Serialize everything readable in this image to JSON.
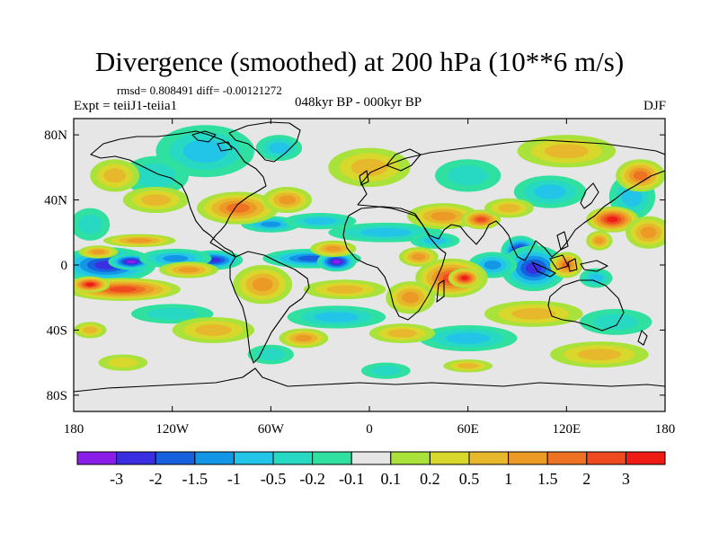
{
  "title": "Divergence (smoothed) at 200 hPa (10**6 m/s)",
  "stats_line": "rmsd= 0.808491 diff= -0.00121272",
  "experiment": "Expt = teiiJ1-teiia1",
  "period": "048kyr BP - 000kyr BP",
  "season": "DJF",
  "chart_data": {
    "type": "heatmap",
    "map": "global-equidistant-cylindrical",
    "lon_range": [
      -180,
      180
    ],
    "lat_range": [
      -90,
      90
    ],
    "x_ticks": [
      {
        "lon": -180,
        "label": "180"
      },
      {
        "lon": -120,
        "label": "120W"
      },
      {
        "lon": -60,
        "label": "60W"
      },
      {
        "lon": 0,
        "label": "0"
      },
      {
        "lon": 60,
        "label": "60E"
      },
      {
        "lon": 120,
        "label": "120E"
      },
      {
        "lon": 180,
        "label": "180"
      }
    ],
    "y_ticks": [
      {
        "lat": 80,
        "label": "80N"
      },
      {
        "lat": 40,
        "label": "40N"
      },
      {
        "lat": 0,
        "label": "0"
      },
      {
        "lat": -40,
        "label": "40S"
      },
      {
        "lat": -80,
        "label": "80S"
      }
    ],
    "colorbar": {
      "colors": [
        "#8a1ee8",
        "#3a2fe0",
        "#1760de",
        "#1496e6",
        "#22c4e8",
        "#27d9c2",
        "#2fe0a0",
        "#e6e6e6",
        "#a8e23a",
        "#d8d82c",
        "#e8b82c",
        "#ec9a26",
        "#ee7224",
        "#f04a20",
        "#ee1c14"
      ],
      "labels": [
        "-3",
        "-2",
        "-1.5",
        "-1",
        "-0.5",
        "-0.2",
        "-0.1",
        "0.1",
        "0.2",
        "0.5",
        "1",
        "1.5",
        "2",
        "3"
      ]
    },
    "field_blobs": [
      {
        "lon": -160,
        "lat": 0,
        "rx": 30,
        "ry": 11,
        "v": -2.3
      },
      {
        "lon": -145,
        "lat": 2,
        "rx": 14,
        "ry": 5,
        "v": -3.2
      },
      {
        "lon": -95,
        "lat": 3,
        "rx": 18,
        "ry": 6,
        "v": -2.2
      },
      {
        "lon": -118,
        "lat": 4,
        "rx": 22,
        "ry": 6,
        "v": -1.1
      },
      {
        "lon": -35,
        "lat": 4,
        "rx": 30,
        "ry": 6,
        "v": -1.6
      },
      {
        "lon": -20,
        "lat": 2,
        "rx": 12,
        "ry": 6,
        "v": -3.2
      },
      {
        "lon": -60,
        "lat": 25,
        "rx": 18,
        "ry": 5,
        "v": -1.1
      },
      {
        "lon": -30,
        "lat": 27,
        "rx": 22,
        "ry": 5,
        "v": -0.8
      },
      {
        "lon": 10,
        "lat": 20,
        "rx": 35,
        "ry": 6,
        "v": -0.7
      },
      {
        "lon": 40,
        "lat": 15,
        "rx": 15,
        "ry": 5,
        "v": -0.9
      },
      {
        "lon": 92,
        "lat": 8,
        "rx": 12,
        "ry": 10,
        "v": -3.1
      },
      {
        "lon": 100,
        "lat": -2,
        "rx": 20,
        "ry": 14,
        "v": -2.1
      },
      {
        "lon": 75,
        "lat": 0,
        "rx": 15,
        "ry": 8,
        "v": -1.3
      },
      {
        "lon": 138,
        "lat": -8,
        "rx": 10,
        "ry": 6,
        "v": -1.0
      },
      {
        "lon": 110,
        "lat": 45,
        "rx": 22,
        "ry": 10,
        "v": -0.8
      },
      {
        "lon": 160,
        "lat": 42,
        "rx": 14,
        "ry": 14,
        "v": -0.6
      },
      {
        "lon": -100,
        "lat": 70,
        "rx": 30,
        "ry": 16,
        "v": -0.7
      },
      {
        "lon": -55,
        "lat": 72,
        "rx": 14,
        "ry": 8,
        "v": -0.9
      },
      {
        "lon": -130,
        "lat": 55,
        "rx": 20,
        "ry": 12,
        "v": -0.5
      },
      {
        "lon": 60,
        "lat": 55,
        "rx": 20,
        "ry": 10,
        "v": -0.5
      },
      {
        "lon": -170,
        "lat": 25,
        "rx": 12,
        "ry": 10,
        "v": -0.5
      },
      {
        "lon": -20,
        "lat": -32,
        "rx": 30,
        "ry": 7,
        "v": -0.8
      },
      {
        "lon": 60,
        "lat": -45,
        "rx": 30,
        "ry": 8,
        "v": -0.8
      },
      {
        "lon": 150,
        "lat": -35,
        "rx": 22,
        "ry": 8,
        "v": -0.5
      },
      {
        "lon": -120,
        "lat": -30,
        "rx": 25,
        "ry": 6,
        "v": -0.4
      },
      {
        "lon": -60,
        "lat": -55,
        "rx": 14,
        "ry": 6,
        "v": -0.5
      },
      {
        "lon": 10,
        "lat": -65,
        "rx": 15,
        "ry": 5,
        "v": -0.3
      },
      {
        "lon": -150,
        "lat": -15,
        "rx": 35,
        "ry": 7,
        "v": 2.4
      },
      {
        "lon": -170,
        "lat": -12,
        "rx": 12,
        "ry": 5,
        "v": 3.2
      },
      {
        "lon": -110,
        "lat": -3,
        "rx": 18,
        "ry": 5,
        "v": 1.3
      },
      {
        "lon": -140,
        "lat": 15,
        "rx": 22,
        "ry": 4,
        "v": 1.0
      },
      {
        "lon": -165,
        "lat": 8,
        "rx": 12,
        "ry": 4,
        "v": 1.0
      },
      {
        "lon": -80,
        "lat": 35,
        "rx": 25,
        "ry": 10,
        "v": 1.6
      },
      {
        "lon": -50,
        "lat": 40,
        "rx": 15,
        "ry": 8,
        "v": 1.2
      },
      {
        "lon": -22,
        "lat": 10,
        "rx": 14,
        "ry": 5,
        "v": 1.4
      },
      {
        "lon": -65,
        "lat": -12,
        "rx": 18,
        "ry": 12,
        "v": 1.0
      },
      {
        "lon": -15,
        "lat": -15,
        "rx": 25,
        "ry": 6,
        "v": 0.8
      },
      {
        "lon": 50,
        "lat": -8,
        "rx": 22,
        "ry": 12,
        "v": 2.0
      },
      {
        "lon": 58,
        "lat": -8,
        "rx": 10,
        "ry": 6,
        "v": 3.2
      },
      {
        "lon": 25,
        "lat": -20,
        "rx": 15,
        "ry": 10,
        "v": 1.3
      },
      {
        "lon": 30,
        "lat": 5,
        "rx": 12,
        "ry": 6,
        "v": 1.0
      },
      {
        "lon": 45,
        "lat": 30,
        "rx": 22,
        "ry": 8,
        "v": 1.2
      },
      {
        "lon": 68,
        "lat": 28,
        "rx": 12,
        "ry": 6,
        "v": 2.5
      },
      {
        "lon": 85,
        "lat": 35,
        "rx": 15,
        "ry": 6,
        "v": 0.8
      },
      {
        "lon": 120,
        "lat": 0,
        "rx": 10,
        "ry": 8,
        "v": 1.5
      },
      {
        "lon": 140,
        "lat": 15,
        "rx": 8,
        "ry": 6,
        "v": 1.3
      },
      {
        "lon": 148,
        "lat": 28,
        "rx": 16,
        "ry": 8,
        "v": 3.0
      },
      {
        "lon": 170,
        "lat": 20,
        "rx": 14,
        "ry": 10,
        "v": 1.3
      },
      {
        "lon": 165,
        "lat": 55,
        "rx": 15,
        "ry": 10,
        "v": 1.5
      },
      {
        "lon": 120,
        "lat": 70,
        "rx": 30,
        "ry": 10,
        "v": 0.6
      },
      {
        "lon": 0,
        "lat": 60,
        "rx": 25,
        "ry": 12,
        "v": 0.6
      },
      {
        "lon": -155,
        "lat": 55,
        "rx": 15,
        "ry": 10,
        "v": 0.6
      },
      {
        "lon": -130,
        "lat": 40,
        "rx": 20,
        "ry": 8,
        "v": 0.8
      },
      {
        "lon": -95,
        "lat": -40,
        "rx": 25,
        "ry": 8,
        "v": 0.7
      },
      {
        "lon": -40,
        "lat": -45,
        "rx": 15,
        "ry": 6,
        "v": 1.0
      },
      {
        "lon": 20,
        "lat": -42,
        "rx": 20,
        "ry": 6,
        "v": 0.6
      },
      {
        "lon": 100,
        "lat": -30,
        "rx": 30,
        "ry": 8,
        "v": 0.6
      },
      {
        "lon": 140,
        "lat": -55,
        "rx": 30,
        "ry": 8,
        "v": 0.6
      },
      {
        "lon": 60,
        "lat": -62,
        "rx": 15,
        "ry": 4,
        "v": 0.5
      },
      {
        "lon": -150,
        "lat": -60,
        "rx": 15,
        "ry": 5,
        "v": 0.4
      },
      {
        "lon": -170,
        "lat": -40,
        "rx": 10,
        "ry": 5,
        "v": 0.7
      }
    ]
  }
}
